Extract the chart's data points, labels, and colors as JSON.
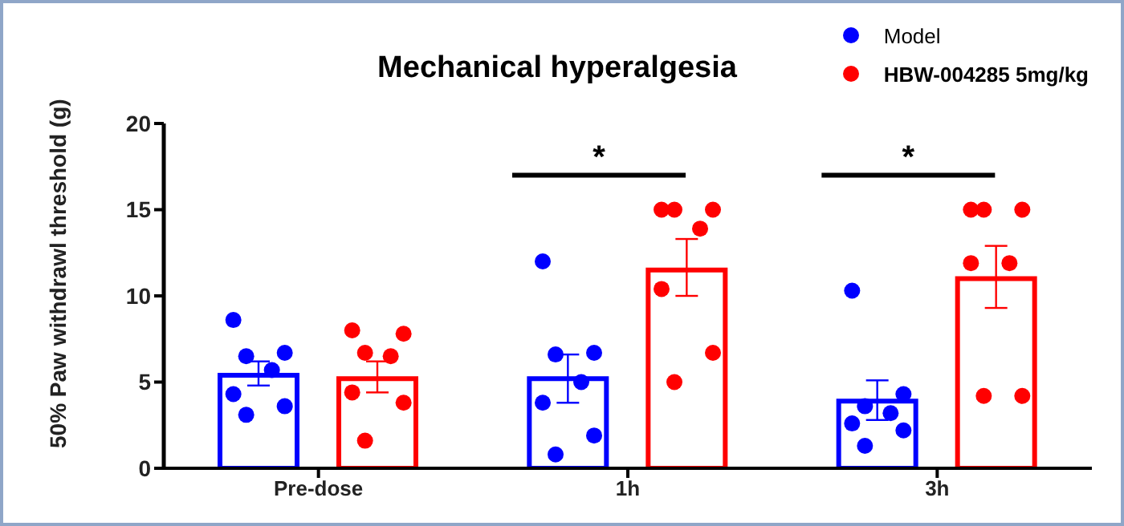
{
  "chart_data": {
    "type": "bar",
    "title": "Mechanical hyperalgesia",
    "ylabel": "50% Paw withdrawl threshold (g)",
    "categories": [
      "Pre-dose",
      "1h",
      "3h"
    ],
    "series": [
      {
        "name": "Model",
        "color": "#0000ff",
        "values": [
          5.4,
          5.2,
          3.9
        ],
        "errors": [
          [
            4.8,
            6.2
          ],
          [
            3.8,
            6.6
          ],
          [
            2.8,
            5.1
          ]
        ]
      },
      {
        "name": "HBW-004285 5mg/kg",
        "color": "#ff0000",
        "values": [
          5.2,
          11.5,
          11.0
        ],
        "errors": [
          [
            4.4,
            6.2
          ],
          [
            10.0,
            13.3
          ],
          [
            9.3,
            12.9
          ]
        ]
      },
      {
        "type": "scatter",
        "color": "#0000ff",
        "x": [
          "Pre-dose",
          "Pre-dose",
          "Pre-dose",
          "Pre-dose",
          "Pre-dose",
          "Pre-dose",
          "Pre-dose",
          "1h",
          "1h",
          "1h",
          "1h",
          "1h",
          "1h",
          "1h",
          "3h",
          "3h",
          "3h",
          "3h",
          "3h",
          "3h",
          "3h"
        ],
        "values": [
          8.6,
          6.7,
          6.5,
          5.7,
          4.3,
          3.6,
          3.1,
          12.0,
          6.7,
          6.6,
          5.0,
          3.8,
          1.9,
          0.8,
          10.3,
          4.3,
          3.6,
          3.2,
          2.6,
          2.2,
          1.3
        ]
      },
      {
        "type": "scatter",
        "color": "#ff0000",
        "x": [
          "Pre-dose",
          "Pre-dose",
          "Pre-dose",
          "Pre-dose",
          "Pre-dose",
          "Pre-dose",
          "Pre-dose",
          "1h",
          "1h",
          "1h",
          "1h",
          "1h",
          "1h",
          "1h",
          "3h",
          "3h",
          "3h",
          "3h",
          "3h",
          "3h",
          "3h"
        ],
        "values": [
          8.0,
          7.8,
          6.7,
          6.5,
          4.4,
          3.8,
          1.6,
          15.0,
          15.0,
          15.0,
          13.9,
          10.4,
          6.7,
          5.0,
          15.0,
          15.0,
          15.0,
          11.9,
          11.9,
          4.2,
          4.2
        ]
      }
    ],
    "ylim": [
      0,
      20
    ],
    "yticks": [
      0,
      5,
      10,
      15,
      20
    ],
    "grid": false,
    "legend": "top right",
    "marker": "circle",
    "annotations": [
      "*",
      "*"
    ]
  }
}
